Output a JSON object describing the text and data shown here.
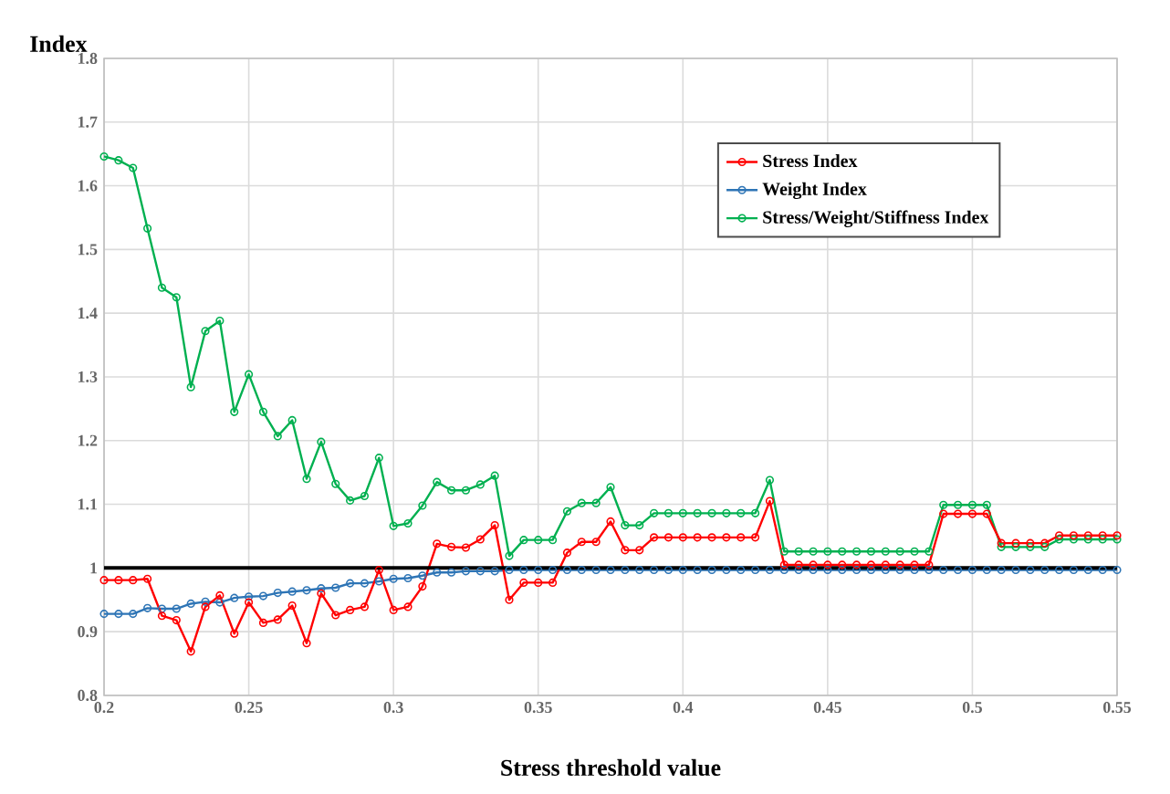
{
  "chart_data": {
    "type": "line",
    "xlabel": "Stress threshold value",
    "ylabel": "Index",
    "x": [
      0.2,
      0.205,
      0.21,
      0.215,
      0.22,
      0.225,
      0.23,
      0.235,
      0.24,
      0.245,
      0.25,
      0.255,
      0.26,
      0.265,
      0.27,
      0.275,
      0.28,
      0.285,
      0.29,
      0.295,
      0.3,
      0.305,
      0.31,
      0.315,
      0.32,
      0.325,
      0.33,
      0.335,
      0.34,
      0.345,
      0.35,
      0.355,
      0.36,
      0.365,
      0.37,
      0.375,
      0.38,
      0.385,
      0.39,
      0.395,
      0.4,
      0.405,
      0.41,
      0.415,
      0.42,
      0.425,
      0.43,
      0.435,
      0.44,
      0.445,
      0.45,
      0.455,
      0.46,
      0.465,
      0.47,
      0.475,
      0.48,
      0.485,
      0.49,
      0.495,
      0.5,
      0.505,
      0.51,
      0.515,
      0.52,
      0.525,
      0.53,
      0.535,
      0.54,
      0.545,
      0.55
    ],
    "series": [
      {
        "name": "Stress Index",
        "color": "#ff0000",
        "values": [
          0.981,
          0.981,
          0.981,
          0.983,
          0.925,
          0.918,
          0.869,
          0.939,
          0.957,
          0.897,
          0.946,
          0.914,
          0.919,
          0.941,
          0.882,
          0.96,
          0.926,
          0.934,
          0.939,
          0.997,
          0.934,
          0.939,
          0.971,
          1.038,
          1.033,
          1.032,
          1.045,
          1.067,
          0.95,
          0.977,
          0.977,
          0.977,
          1.024,
          1.041,
          1.041,
          1.073,
          1.028,
          1.028,
          1.048,
          1.048,
          1.048,
          1.048,
          1.048,
          1.048,
          1.048,
          1.048,
          1.105,
          1.005,
          1.005,
          1.005,
          1.005,
          1.005,
          1.005,
          1.005,
          1.005,
          1.005,
          1.005,
          1.005,
          1.085,
          1.085,
          1.085,
          1.085,
          1.039,
          1.039,
          1.039,
          1.039,
          1.051,
          1.051,
          1.051,
          1.051,
          1.051
        ]
      },
      {
        "name": "Weight Index",
        "color": "#2e75b6",
        "values": [
          0.928,
          0.928,
          0.928,
          0.937,
          0.936,
          0.936,
          0.944,
          0.947,
          0.946,
          0.953,
          0.955,
          0.956,
          0.961,
          0.963,
          0.965,
          0.968,
          0.969,
          0.976,
          0.976,
          0.979,
          0.983,
          0.984,
          0.988,
          0.993,
          0.993,
          0.995,
          0.995,
          0.995,
          0.997,
          0.997,
          0.997,
          0.997,
          0.997,
          0.997,
          0.997,
          0.997,
          0.997,
          0.997,
          0.997,
          0.997,
          0.997,
          0.997,
          0.997,
          0.997,
          0.997,
          0.997,
          0.997,
          0.997,
          0.997,
          0.997,
          0.997,
          0.997,
          0.997,
          0.997,
          0.997,
          0.997,
          0.997,
          0.997,
          0.997,
          0.997,
          0.997,
          0.997,
          0.997,
          0.997,
          0.997,
          0.997,
          0.997,
          0.997,
          0.997,
          0.997,
          0.997
        ]
      },
      {
        "name": "Stress/Weight/Stiffness Index",
        "color": "#00b050",
        "values": [
          1.646,
          1.64,
          1.628,
          1.533,
          1.44,
          1.425,
          1.284,
          1.372,
          1.388,
          1.245,
          1.304,
          1.245,
          1.207,
          1.232,
          1.14,
          1.198,
          1.132,
          1.106,
          1.113,
          1.173,
          1.066,
          1.07,
          1.098,
          1.135,
          1.122,
          1.122,
          1.131,
          1.145,
          1.019,
          1.044,
          1.044,
          1.044,
          1.089,
          1.102,
          1.102,
          1.127,
          1.067,
          1.067,
          1.086,
          1.086,
          1.086,
          1.086,
          1.086,
          1.086,
          1.086,
          1.086,
          1.138,
          1.026,
          1.026,
          1.026,
          1.026,
          1.026,
          1.026,
          1.026,
          1.026,
          1.026,
          1.026,
          1.026,
          1.099,
          1.099,
          1.099,
          1.099,
          1.033,
          1.033,
          1.033,
          1.033,
          1.045,
          1.045,
          1.045,
          1.045,
          1.045
        ]
      }
    ],
    "xlim": [
      0.2,
      0.55
    ],
    "xticks": [
      0.2,
      0.25,
      0.3,
      0.35,
      0.4,
      0.45,
      0.5,
      0.55
    ],
    "ylim": [
      0.8,
      1.8
    ],
    "yticks": [
      0.8,
      0.9,
      1,
      1.1,
      1.2,
      1.3,
      1.4,
      1.5,
      1.6,
      1.7,
      1.8
    ],
    "ref_lines": [
      {
        "axis": "y",
        "value": 1,
        "color": "#000000"
      }
    ],
    "grid": true,
    "legend": "top right",
    "marker": "circle",
    "line_style": "solid"
  }
}
